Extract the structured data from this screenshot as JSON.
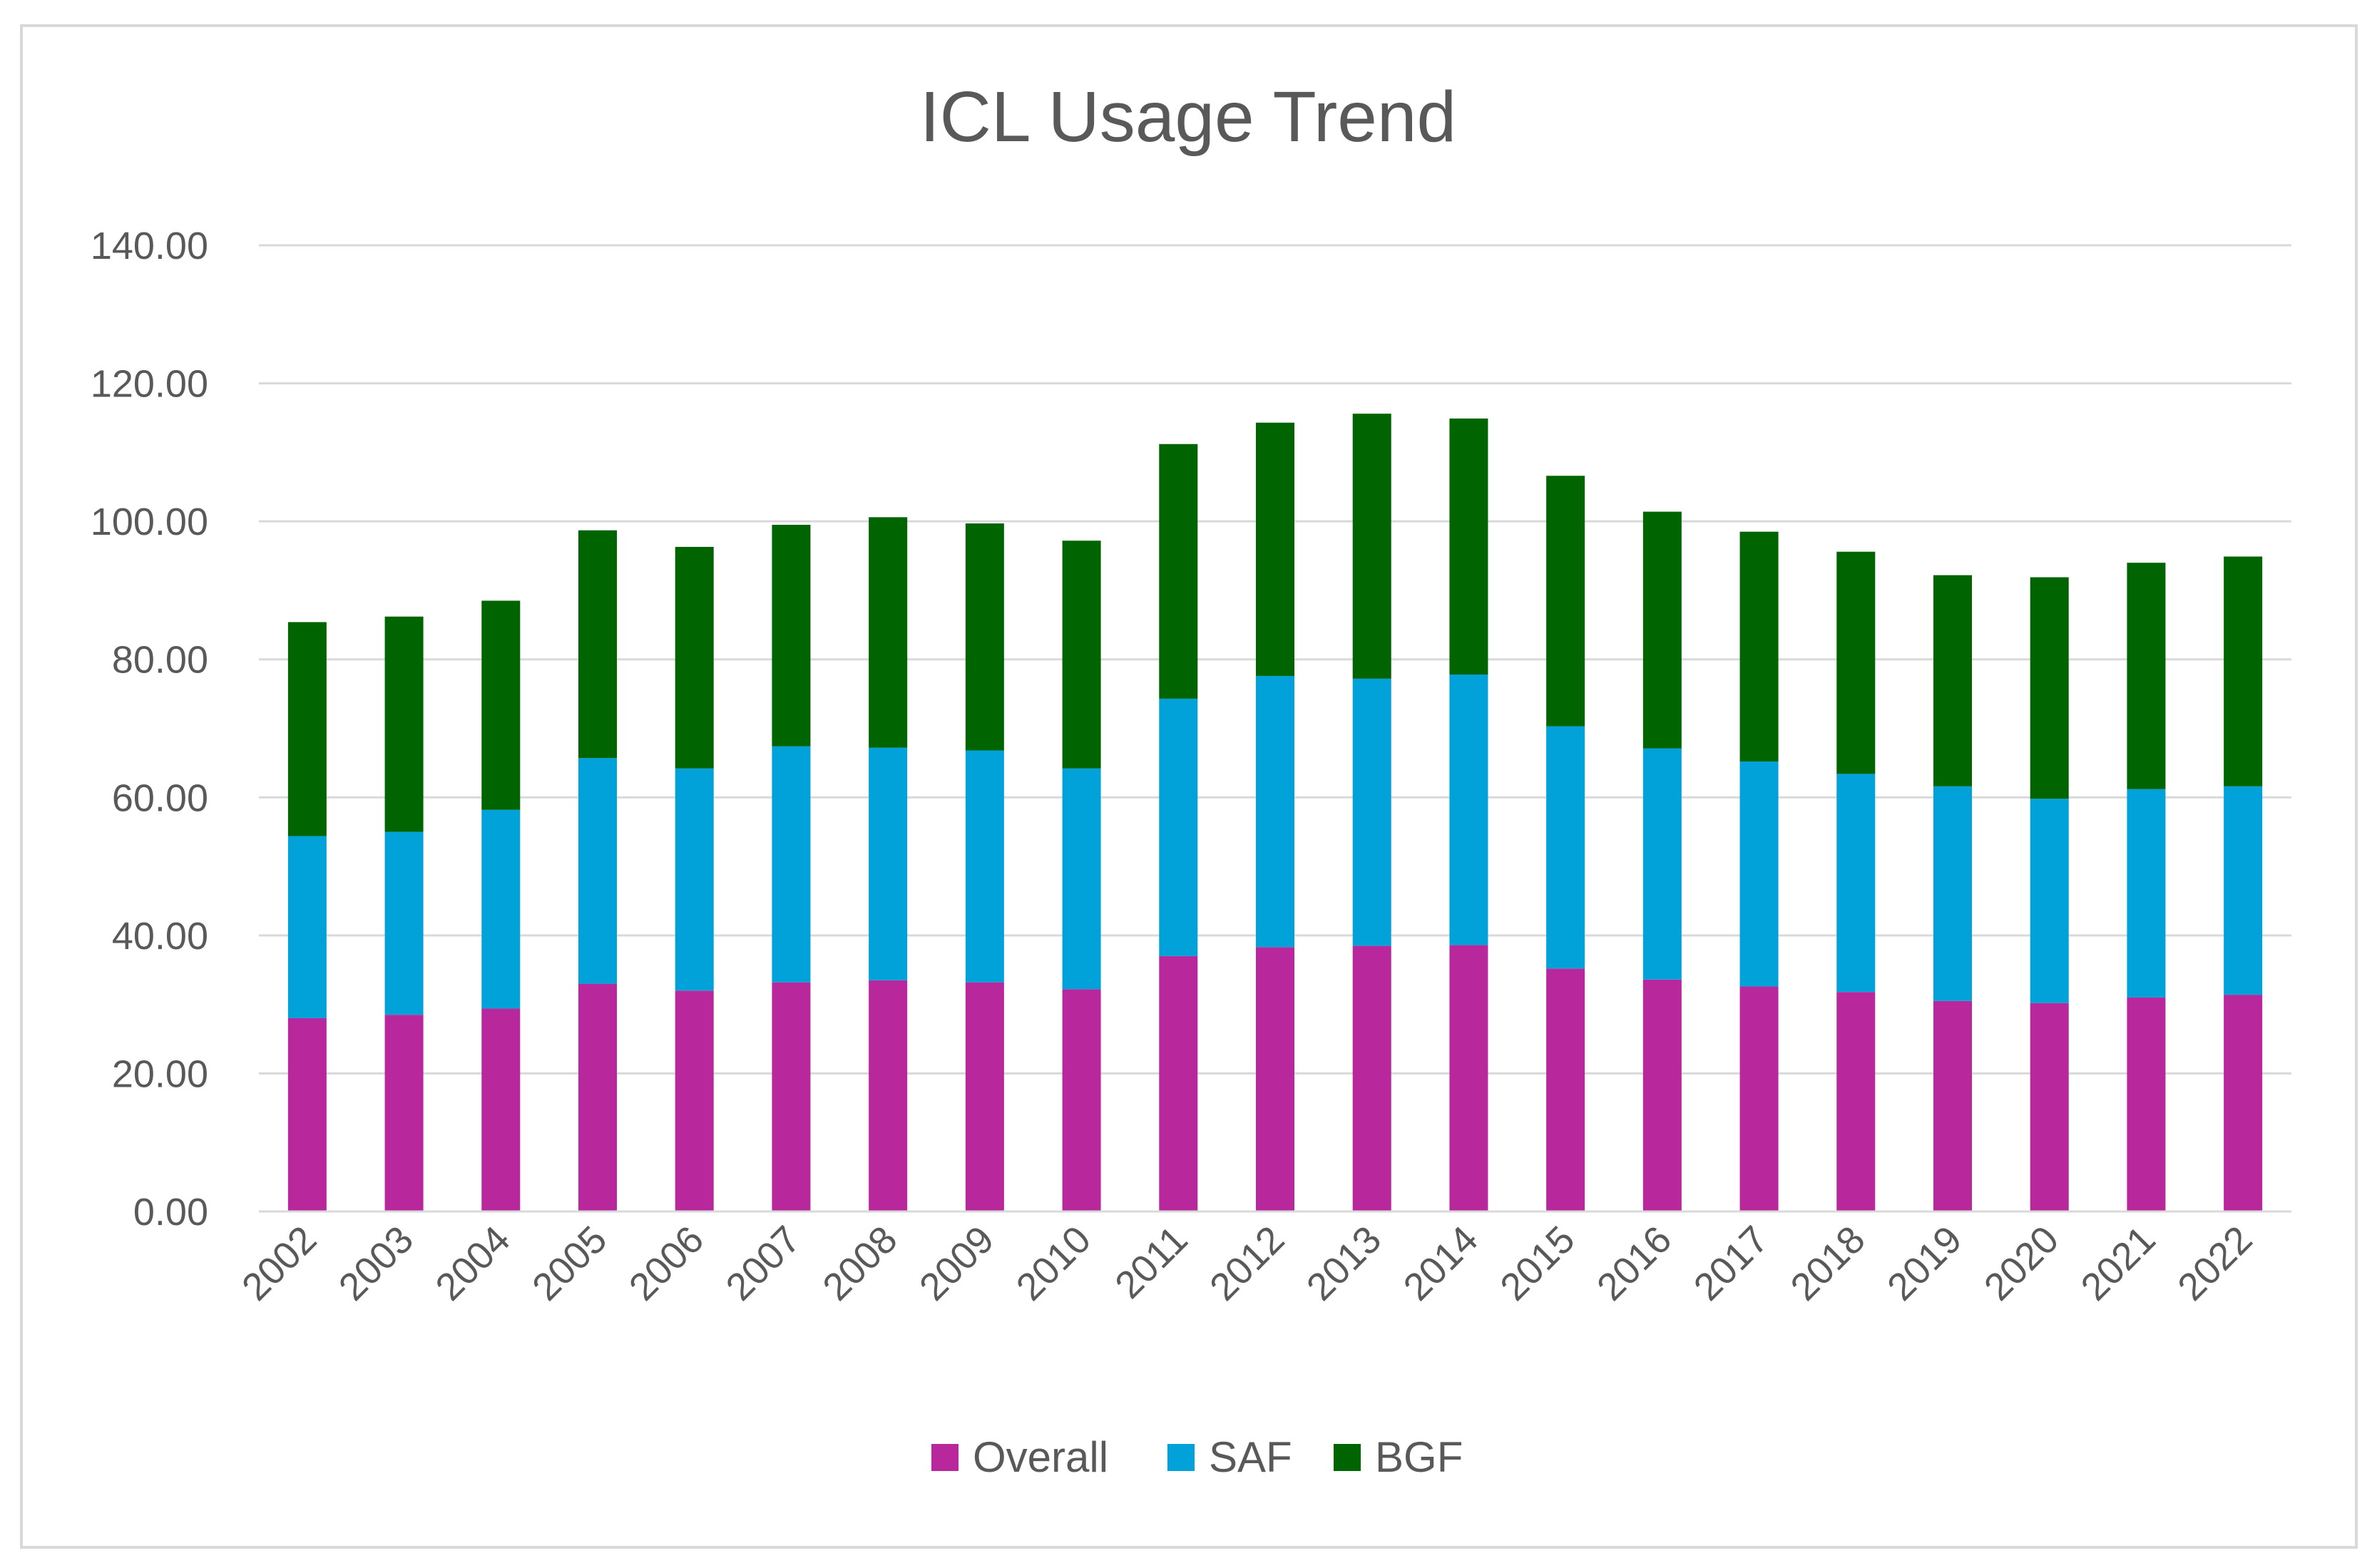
{
  "chart_data": {
    "type": "bar",
    "stacked": true,
    "title": "ICL Usage Trend",
    "xlabel": "",
    "ylabel": "",
    "ylim": [
      0,
      140
    ],
    "y_ticks": [
      "0.00",
      "20.00",
      "40.00",
      "60.00",
      "80.00",
      "100.00",
      "120.00",
      "140.00"
    ],
    "grid": true,
    "legend_position": "bottom",
    "categories": [
      "2002",
      "2003",
      "2004",
      "2005",
      "2006",
      "2007",
      "2008",
      "2009",
      "2010",
      "2011",
      "2012",
      "2013",
      "2014",
      "2015",
      "2016",
      "2017",
      "2018",
      "2019",
      "2020",
      "2021",
      "2022"
    ],
    "series": [
      {
        "name": "Overall",
        "color": "#b8279b",
        "values": [
          28.0,
          28.5,
          29.4,
          33.0,
          32.0,
          33.2,
          33.5,
          33.2,
          32.2,
          37.0,
          38.3,
          38.5,
          38.6,
          35.2,
          33.6,
          32.6,
          31.8,
          30.5,
          30.2,
          31.0,
          31.4
        ]
      },
      {
        "name": "SAF",
        "color": "#00a2d9",
        "values": [
          26.4,
          26.5,
          28.8,
          32.7,
          32.2,
          34.2,
          33.7,
          33.6,
          32.0,
          37.3,
          39.3,
          38.7,
          39.2,
          35.1,
          33.5,
          32.6,
          31.6,
          31.1,
          29.6,
          30.2,
          30.2
        ]
      },
      {
        "name": "BGF",
        "color": "#006400",
        "values": [
          31.0,
          31.2,
          30.3,
          33.0,
          32.1,
          32.1,
          33.4,
          32.9,
          33.0,
          36.9,
          36.7,
          38.4,
          37.1,
          36.3,
          34.3,
          33.3,
          32.2,
          30.6,
          32.1,
          32.8,
          33.3
        ]
      }
    ]
  }
}
